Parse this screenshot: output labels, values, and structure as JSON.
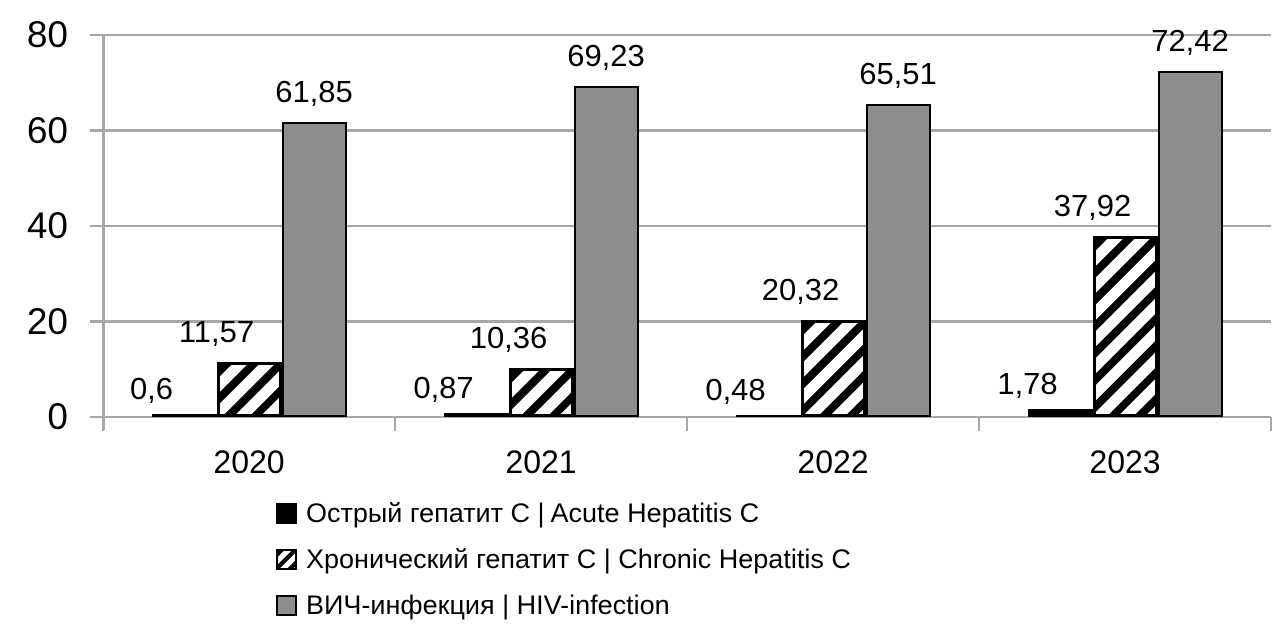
{
  "chart_data": {
    "type": "bar",
    "title": "",
    "xlabel": "",
    "ylabel": "",
    "categories": [
      "2020",
      "2021",
      "2022",
      "2023"
    ],
    "series": [
      {
        "name": "Острый гепатит C | Acute Hepatitis C",
        "style": "solid-black",
        "values": [
          0.6,
          0.87,
          0.48,
          1.78
        ],
        "labels": [
          "0,6",
          "0,87",
          "0,48",
          "1,78"
        ]
      },
      {
        "name": "Хронический гепатит C | Chronic Hepatitis C",
        "style": "hatched-diagonal",
        "values": [
          11.57,
          10.36,
          20.32,
          37.92
        ],
        "labels": [
          "11,57",
          "10,36",
          "20,32",
          "37,92"
        ]
      },
      {
        "name": "ВИЧ-инфекция | HIV-infection",
        "style": "solid-gray",
        "values": [
          61.85,
          69.23,
          65.51,
          72.42
        ],
        "labels": [
          "61,85",
          "69,23",
          "65,51",
          "72,42"
        ]
      }
    ],
    "ylim": [
      0,
      80
    ],
    "yticks": [
      0,
      20,
      40,
      60,
      80
    ],
    "grid": true,
    "legend_position": "bottom-left",
    "decimal_separator": ",",
    "colors": {
      "bar_black": "#000000",
      "bar_gray": "#8E8E91",
      "axis_gray": "#A7A7A7",
      "background": "#FFFFFF",
      "text": "#000000"
    }
  }
}
